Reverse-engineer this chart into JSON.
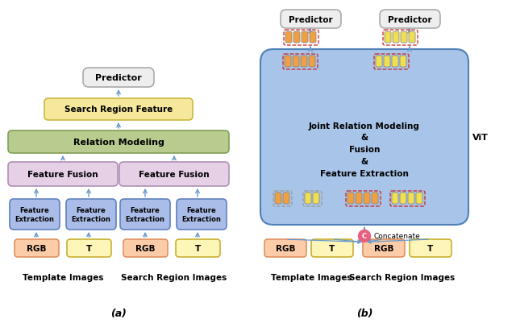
{
  "fig_width": 6.4,
  "fig_height": 4.02,
  "dpi": 100,
  "bg_color": "#ffffff",
  "colors": {
    "predictor_bg": "#eeeeee",
    "predictor_edge": "#aaaaaa",
    "search_region_bg": "#f5e89a",
    "search_region_edge": "#c8b840",
    "relation_bg": "#b8cc90",
    "relation_edge": "#80a055",
    "feature_fusion_bg": "#e5d0e5",
    "feature_fusion_edge": "#b090b5",
    "feature_extraction_bg": "#aabde8",
    "feature_extraction_edge": "#6080c0",
    "rgb_bg": "#fccca8",
    "rgb_edge": "#e09060",
    "t_bg": "#fef5b8",
    "t_edge": "#c8b030",
    "joint_bg": "#a8c4e8",
    "joint_edge": "#5080b8",
    "arrow_color": "#6699cc",
    "token_orange": "#f0a040",
    "token_yellow": "#f0e050",
    "token_border_red": "#cc2222",
    "token_border_gray": "#999999",
    "concat_node": "#e86080",
    "concat_edge": "#c04060"
  },
  "label_a": "(a)",
  "label_b": "(b)",
  "template_label": "Template Images",
  "search_label": "Search Region Images",
  "vit_label": "ViT",
  "concatenate_label": "Concatenate"
}
